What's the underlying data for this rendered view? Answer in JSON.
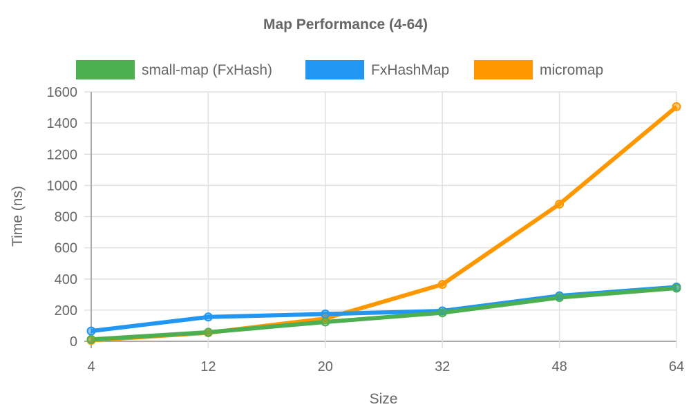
{
  "chart_data": {
    "type": "line",
    "title": "Map Performance (4-64)",
    "xlabel": "Size",
    "ylabel": "Time (ns)",
    "categories": [
      "4",
      "12",
      "20",
      "32",
      "48",
      "64"
    ],
    "ylim": [
      0,
      1600
    ],
    "yticks": [
      0,
      200,
      400,
      600,
      800,
      1000,
      1200,
      1400,
      1600
    ],
    "grid": true,
    "legend_position": "top",
    "series": [
      {
        "name": "small-map (FxHash)",
        "color": "#4caf50",
        "values": [
          12,
          58,
          124,
          183,
          281,
          341
        ]
      },
      {
        "name": "FxHashMap",
        "color": "#2196f3",
        "values": [
          66,
          156,
          175,
          195,
          292,
          348
        ]
      },
      {
        "name": "micromap",
        "color": "#ff9800",
        "values": [
          6,
          55,
          146,
          365,
          880,
          1505
        ]
      }
    ]
  }
}
